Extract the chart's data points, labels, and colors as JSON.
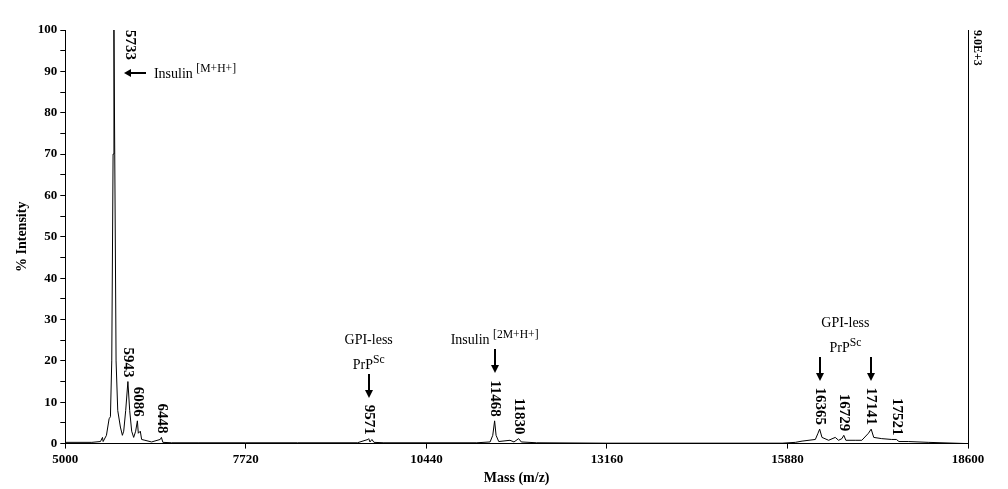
{
  "chart_data": {
    "type": "line",
    "xlabel": "Mass (m/z)",
    "ylabel": "% Intensity",
    "color": "#000000",
    "marker": "none",
    "grid": false,
    "legend": false,
    "x": [
      5000,
      5400,
      5530,
      5560,
      5570,
      5620,
      5660,
      5680,
      5700,
      5720,
      5733,
      5745,
      5765,
      5790,
      5830,
      5860,
      5880,
      5910,
      5943,
      5970,
      6000,
      6030,
      6060,
      6086,
      6100,
      6130,
      6150,
      6200,
      6300,
      6430,
      6448,
      6470,
      6600,
      7000,
      7720,
      8500,
      9400,
      9560,
      9571,
      9590,
      9620,
      9650,
      9800,
      11200,
      11400,
      11440,
      11468,
      11490,
      11530,
      11700,
      11760,
      11830,
      11870,
      12100,
      13160,
      15800,
      16000,
      16100,
      16300,
      16340,
      16365,
      16400,
      16500,
      16600,
      16650,
      16700,
      16729,
      16760,
      16900,
      17000,
      17100,
      17141,
      17180,
      17300,
      17450,
      17521,
      17560,
      17700,
      18000,
      18600
    ],
    "values": [
      0.3,
      0.3,
      0.5,
      1.5,
      0.5,
      2,
      6,
      6.5,
      20,
      70,
      100,
      70,
      20,
      8,
      4,
      2,
      3,
      8,
      15,
      8,
      3,
      1.5,
      3,
      5.5,
      2.5,
      3,
      1,
      0.8,
      0.4,
      1,
      1.5,
      0.3,
      0.2,
      0.2,
      0.2,
      0.2,
      0.2,
      1,
      1.2,
      0.4,
      1,
      0.3,
      0.2,
      0.2,
      0.4,
      2,
      5.5,
      2,
      0.5,
      0.8,
      0.4,
      1.2,
      0.4,
      0.2,
      0.1,
      0.1,
      0.3,
      0.6,
      1,
      2.5,
      3.5,
      1.5,
      0.8,
      1.5,
      0.8,
      1.2,
      2,
      0.8,
      0.8,
      0.8,
      2.5,
      3.5,
      1.5,
      1.2,
      1,
      1,
      0.5,
      0.5,
      0.3,
      0
    ],
    "xlim": [
      5000,
      18600
    ],
    "xticks": [
      5000,
      7720,
      10440,
      13160,
      15880,
      18600
    ],
    "ylim": [
      0,
      100
    ],
    "yticks": [
      0,
      {
        "value": 5,
        "label": null
      },
      10,
      {
        "value": 15,
        "label": null
      },
      20,
      {
        "value": 25,
        "label": null
      },
      30,
      {
        "value": 35,
        "label": null
      },
      40,
      {
        "value": 45,
        "label": null
      },
      50,
      {
        "value": 55,
        "label": null
      },
      60,
      {
        "value": 65,
        "label": null
      },
      70,
      {
        "value": 75,
        "label": null
      },
      80,
      {
        "value": 85,
        "label": null
      },
      90,
      {
        "value": 95,
        "label": null
      },
      100
    ],
    "annotations": [
      {
        "text": "5733",
        "x": 5733,
        "y": 100
      },
      {
        "text": "5943",
        "x": 5943,
        "y": 15
      },
      {
        "text": "6086",
        "x": 6086,
        "y": 5.5
      },
      {
        "text": "6448",
        "x": 6448,
        "y": 1.5
      },
      {
        "text": "9571",
        "x": 9571,
        "y": 1.2
      },
      {
        "text": "11468",
        "x": 11468,
        "y": 5.5
      },
      {
        "text": "11830",
        "x": 11830,
        "y": 1.2
      },
      {
        "text": "16365",
        "x": 16365,
        "y": 3.5
      },
      {
        "text": "16729",
        "x": 16729,
        "y": 2
      },
      {
        "text": "17141",
        "x": 17141,
        "y": 3.5
      },
      {
        "text": "17521",
        "x": 17521,
        "y": 1
      },
      "Insulin $^{[M+H+]}$",
      "GPI-less PrP$^{Sc}$",
      "Insulin $^{[2M+H+]}$",
      "GPI-less PrP$^{Sc}$",
      "9.0E+3"
    ]
  }
}
